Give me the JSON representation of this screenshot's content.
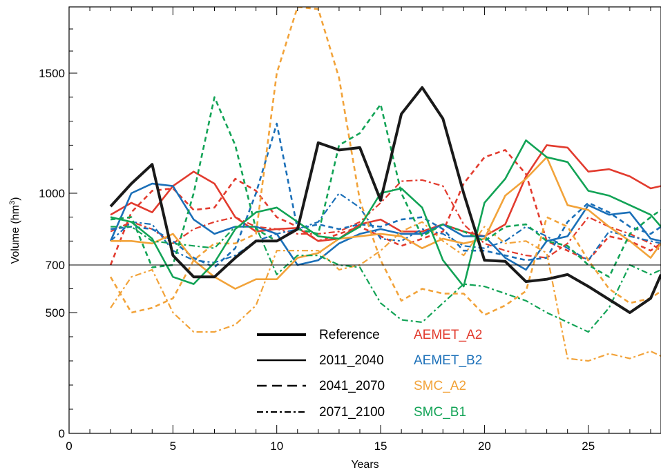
{
  "chart_data": {
    "type": "line",
    "title": "",
    "xlabel": "Years",
    "ylabel": "Volume (hm",
    "ylabel_sup": "3",
    "ylabel_close": ")",
    "xlim": [
      0,
      28.5
    ],
    "ylim": [
      0,
      1800
    ],
    "yscale": "nonlinear",
    "x_ticks": [
      0,
      5,
      10,
      15,
      20,
      25
    ],
    "y_ticks": [
      0,
      500,
      700,
      1000,
      1500
    ],
    "reference_line": 700,
    "grid": false,
    "legend_position": "bottom-center",
    "colors": {
      "Reference": "#1a1a1a",
      "AEMET_A2": "#e23b2e",
      "AEMET_B2": "#1a6fb8",
      "SMC_A2": "#f2a33a",
      "SMC_B1": "#12a356"
    },
    "legend": {
      "periods": [
        {
          "label": "Reference",
          "style": "thick"
        },
        {
          "label": "2011_2040",
          "style": "solid"
        },
        {
          "label": "2041_2070",
          "style": "dashed"
        },
        {
          "label": "2071_2100",
          "style": "dashdot"
        }
      ],
      "models": [
        "AEMET_A2",
        "AEMET_B2",
        "SMC_A2",
        "SMC_B1"
      ]
    },
    "x": [
      2,
      3,
      4,
      5,
      6,
      7,
      8,
      9,
      10,
      11,
      12,
      13,
      14,
      15,
      16,
      17,
      18,
      19,
      20,
      21,
      22,
      23,
      24,
      25,
      26,
      27,
      28,
      28.5
    ],
    "series": [
      {
        "name": "Reference",
        "model": "Reference",
        "style": "thick",
        "values": [
          945,
          1040,
          1120,
          740,
          650,
          650,
          730,
          800,
          800,
          850,
          1210,
          1180,
          1190,
          970,
          1330,
          1440,
          1310,
          1000,
          720,
          715,
          630,
          640,
          660,
          610,
          555,
          500,
          560,
          660
        ]
      },
      {
        "name": "AEMET_A2 2011_2040",
        "model": "AEMET_A2",
        "style": "solid",
        "values": [
          910,
          960,
          920,
          1030,
          1090,
          1040,
          900,
          840,
          850,
          855,
          800,
          810,
          870,
          890,
          840,
          840,
          870,
          840,
          820,
          870,
          1070,
          1200,
          1190,
          1090,
          1100,
          1070,
          1020,
          1030
        ]
      },
      {
        "name": "AEMET_A2 2041_2070",
        "model": "AEMET_A2",
        "style": "dashed",
        "values": [
          700,
          920,
          1010,
          1020,
          930,
          940,
          1060,
          1010,
          900,
          860,
          800,
          830,
          860,
          820,
          780,
          810,
          840,
          1040,
          1150,
          1180,
          1080,
          800,
          760,
          720,
          820,
          800,
          760,
          790
        ]
      },
      {
        "name": "AEMET_A2 2071_2100",
        "model": "AEMET_A2",
        "style": "dashdot",
        "values": [
          840,
          880,
          850,
          790,
          850,
          880,
          900,
          860,
          850,
          830,
          830,
          840,
          880,
          960,
          1050,
          1055,
          1030,
          870,
          790,
          760,
          740,
          730,
          790,
          900,
          860,
          830,
          790,
          760
        ]
      },
      {
        "name": "AEMET_B2 2011_2040",
        "model": "AEMET_B2",
        "style": "solid",
        "values": [
          800,
          1000,
          1040,
          1030,
          890,
          830,
          860,
          860,
          830,
          700,
          720,
          790,
          830,
          850,
          830,
          830,
          870,
          820,
          820,
          730,
          680,
          800,
          820,
          950,
          910,
          920,
          810,
          800
        ]
      },
      {
        "name": "AEMET_B2 2041_2070",
        "model": "AEMET_B2",
        "style": "dashed",
        "values": [
          850,
          860,
          850,
          800,
          730,
          690,
          770,
          1000,
          1290,
          850,
          870,
          850,
          870,
          860,
          890,
          900,
          850,
          760,
          760,
          740,
          720,
          730,
          880,
          960,
          920,
          860,
          830,
          860
        ]
      },
      {
        "name": "AEMET_B2 2071_2100",
        "model": "AEMET_B2",
        "style": "dashdot",
        "values": [
          800,
          880,
          870,
          760,
          720,
          710,
          740,
          800,
          830,
          850,
          880,
          1000,
          940,
          810,
          800,
          850,
          830,
          780,
          770,
          800,
          860,
          820,
          770,
          720,
          840,
          820,
          800,
          790
        ]
      },
      {
        "name": "SMC_A2 2011_2040",
        "model": "SMC_A2",
        "style": "solid",
        "values": [
          800,
          800,
          790,
          830,
          720,
          650,
          600,
          640,
          640,
          730,
          750,
          810,
          820,
          830,
          820,
          770,
          810,
          790,
          810,
          990,
          1060,
          1150,
          950,
          930,
          860,
          800,
          730,
          790
        ]
      },
      {
        "name": "SMC_A2 2041_2070",
        "model": "SMC_A2",
        "style": "dashed",
        "values": [
          650,
          500,
          520,
          560,
          720,
          790,
          790,
          830,
          1500,
          1800,
          1790,
          1480,
          970,
          720,
          550,
          600,
          580,
          580,
          490,
          530,
          590,
          900,
          860,
          720,
          600,
          540,
          560,
          590
        ]
      },
      {
        "name": "SMC_A2 2071_2100",
        "model": "SMC_A2",
        "style": "dashdot",
        "values": [
          520,
          650,
          680,
          500,
          420,
          420,
          450,
          530,
          760,
          760,
          760,
          680,
          700,
          760,
          840,
          880,
          800,
          740,
          860,
          790,
          800,
          750,
          310,
          300,
          330,
          310,
          340,
          320
        ]
      },
      {
        "name": "SMC_B1 2011_2040",
        "model": "SMC_B1",
        "style": "solid",
        "values": [
          900,
          880,
          810,
          650,
          620,
          710,
          850,
          920,
          940,
          880,
          820,
          810,
          860,
          1000,
          1020,
          940,
          720,
          610,
          960,
          1060,
          1220,
          1150,
          1130,
          1010,
          990,
          950,
          910,
          860
        ]
      },
      {
        "name": "SMC_B1 2041_2070",
        "model": "SMC_B1",
        "style": "dashed",
        "values": [
          890,
          900,
          690,
          700,
          1000,
          1400,
          1200,
          850,
          800,
          850,
          830,
          1200,
          1250,
          1370,
          1000,
          820,
          870,
          840,
          800,
          860,
          870,
          800,
          780,
          700,
          650,
          830,
          900,
          930
        ]
      },
      {
        "name": "SMC_B1 2071_2100",
        "model": "SMC_B1",
        "style": "dashdot",
        "values": [
          860,
          860,
          800,
          790,
          780,
          770,
          860,
          860,
          660,
          740,
          740,
          700,
          690,
          540,
          470,
          460,
          540,
          620,
          610,
          580,
          550,
          500,
          460,
          420,
          520,
          700,
          660,
          680
        ]
      }
    ]
  }
}
